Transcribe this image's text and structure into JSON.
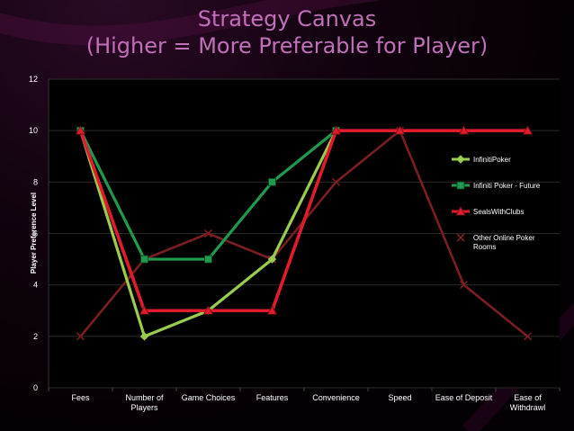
{
  "slide": {
    "title_line1": "Strategy Canvas",
    "title_line2": "(Higher = More Preferable for Player)"
  },
  "colors": {
    "background": "#000000",
    "title": "#c070b8",
    "plot_area": "#000000",
    "grid": "#2a2a2a"
  },
  "chart_data": {
    "type": "line",
    "title": "",
    "xlabel": "",
    "ylabel": "Player Preference Level",
    "ylim": [
      0,
      12
    ],
    "yticks": [
      0,
      2,
      4,
      6,
      8,
      10,
      12
    ],
    "grid": true,
    "legend_placement": "right",
    "categories": [
      [
        "Fees"
      ],
      [
        "Number of",
        "Players"
      ],
      [
        "Game Choices"
      ],
      [
        "Features"
      ],
      [
        "Convenience"
      ],
      [
        "Speed"
      ],
      [
        "Ease of Deposit"
      ],
      [
        "Ease of",
        "Withdrawl"
      ]
    ],
    "series": [
      {
        "name": "InfinitiPoker",
        "color": "#9acd4e",
        "marker": "diamond",
        "values": [
          10,
          2,
          3,
          5,
          10,
          null,
          null,
          null
        ]
      },
      {
        "name": "Infiniti Poker - Future",
        "color": "#1f9a4e",
        "marker": "square",
        "values": [
          10,
          5,
          5,
          8,
          10,
          null,
          null,
          null
        ]
      },
      {
        "name": "SealsWithClubs",
        "color": "#e01c2c",
        "marker": "triangle",
        "values": [
          10,
          3,
          3,
          3,
          10,
          10,
          10,
          10
        ]
      },
      {
        "name": "Other Online Poker Rooms",
        "color": "#7a1e22",
        "marker": "x",
        "legend_label": [
          "Other Online Poker",
          "Rooms"
        ],
        "values": [
          2,
          5,
          6,
          5,
          8,
          10,
          4,
          2
        ]
      }
    ]
  }
}
